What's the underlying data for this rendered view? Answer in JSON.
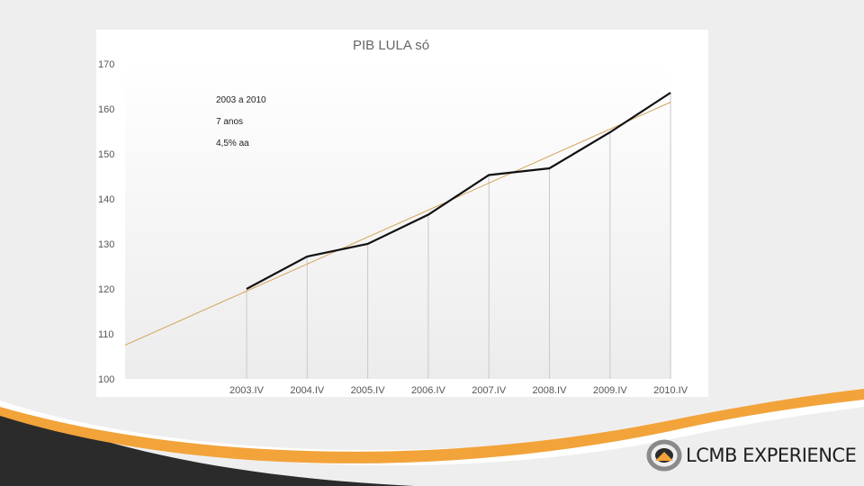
{
  "chart_data": {
    "type": "line",
    "title": "PIB  LULA só",
    "categories": [
      "2003.IV",
      "2004.IV",
      "2005.IV",
      "2006.IV",
      "2007.IV",
      "2008.IV",
      "2009.IV",
      "2010.IV"
    ],
    "series": [
      {
        "values": [
          120,
          127.2,
          130,
          136.5,
          145.3,
          146.8,
          154.8,
          163.6
        ],
        "color": "#111111"
      }
    ],
    "trend": {
      "start": 107.5,
      "end": 161.5,
      "color": "#d4a45a"
    },
    "yticks": [
      100,
      110,
      120,
      130,
      140,
      150,
      160,
      170
    ],
    "ylim": [
      100,
      170
    ],
    "annotations": [
      "2003 a 2010",
      "7 anos",
      "4,5% aa"
    ],
    "grid": "vertical drop lines at categories"
  },
  "brand": {
    "logo_text": "LCMB EXPERIENCE",
    "accent_color": "#f2a33a",
    "dark_color": "#2b2b2b"
  }
}
